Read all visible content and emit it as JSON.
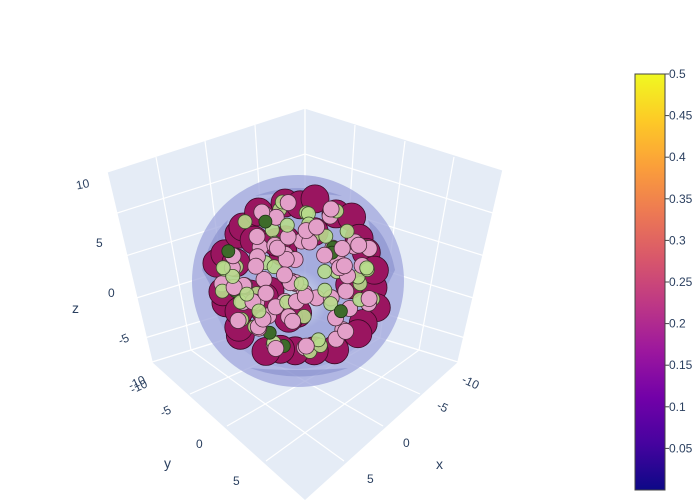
{
  "chart_data": {
    "type": "scatter3d",
    "axes": {
      "x": {
        "title": "x",
        "ticks": [
          -10,
          -5,
          0,
          5
        ]
      },
      "y": {
        "title": "y",
        "ticks": [
          -10,
          -5,
          0,
          5
        ]
      },
      "z": {
        "title": "z",
        "ticks": [
          -10,
          -5,
          0,
          5,
          10
        ]
      }
    },
    "colorbar": {
      "min": 0,
      "max": 0.5,
      "ticks": [
        0.05,
        0.1,
        0.15,
        0.2,
        0.25,
        0.3,
        0.35,
        0.4,
        0.45,
        0.5
      ],
      "colorscale": [
        "#0d0887",
        "#46039f",
        "#7201a8",
        "#9c179e",
        "#bd3786",
        "#d8576b",
        "#ed7953",
        "#fb9f3a",
        "#fdca26",
        "#f0f921"
      ]
    },
    "surface": {
      "shape": "sphere",
      "color": "#9fa6dc"
    },
    "marker_colors": {
      "large": "#9a1560",
      "medium": "#e3a0c9",
      "light_green": "#b7dc8c",
      "dark_green": "#3d6b2a"
    },
    "grid": true,
    "legend": "none"
  }
}
